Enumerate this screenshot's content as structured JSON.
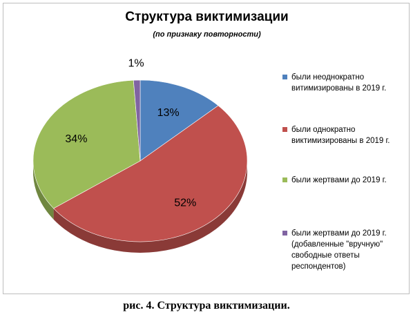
{
  "chart_data": {
    "type": "pie",
    "title": "Структура виктимизации",
    "subtitle": "(по признаку повторности)",
    "slices": [
      {
        "label": "были неоднократно витимизированы в 2019 г.",
        "value": 13,
        "data_label": "13%",
        "color": "#4f81bd"
      },
      {
        "label": "были однократно виктимизированы в 2019 г.",
        "value": 52,
        "data_label": "52%",
        "color": "#c0504d"
      },
      {
        "label": "были жертвами до 2019 г.",
        "value": 34,
        "data_label": "34%",
        "color": "#9bbb59"
      },
      {
        "label": "были жертвами до 2019 г. (добавленные \"вручную\" свободные ответы респондентов)",
        "value": 1,
        "data_label": "1%",
        "color": "#8064a2"
      }
    ],
    "legend_position": "right",
    "style": "3d-tilted"
  },
  "caption": "рис. 4. Структура виктимизации."
}
